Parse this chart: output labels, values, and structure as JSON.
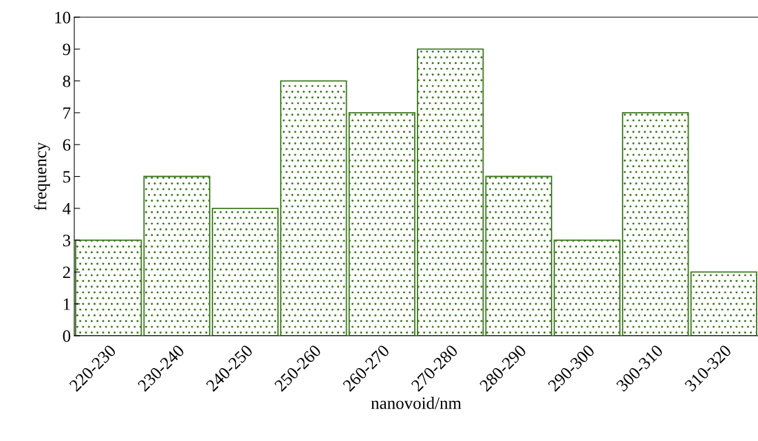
{
  "chart_data": {
    "type": "bar",
    "xlabel": "nanovoid/nm",
    "ylabel": "frequency",
    "categories": [
      "220-230",
      "230-240",
      "240-250",
      "250-260",
      "260-270",
      "270-280",
      "280-290",
      "290-300",
      "300-310",
      "310-320"
    ],
    "values": [
      3,
      5,
      4,
      8,
      7,
      9,
      5,
      3,
      7,
      2
    ],
    "color": "#3d7a1f",
    "ylim": [
      0,
      10
    ],
    "yticks": [
      0,
      1,
      2,
      3,
      4,
      5,
      6,
      7,
      8,
      9,
      10
    ],
    "grid": false,
    "legend": false
  }
}
